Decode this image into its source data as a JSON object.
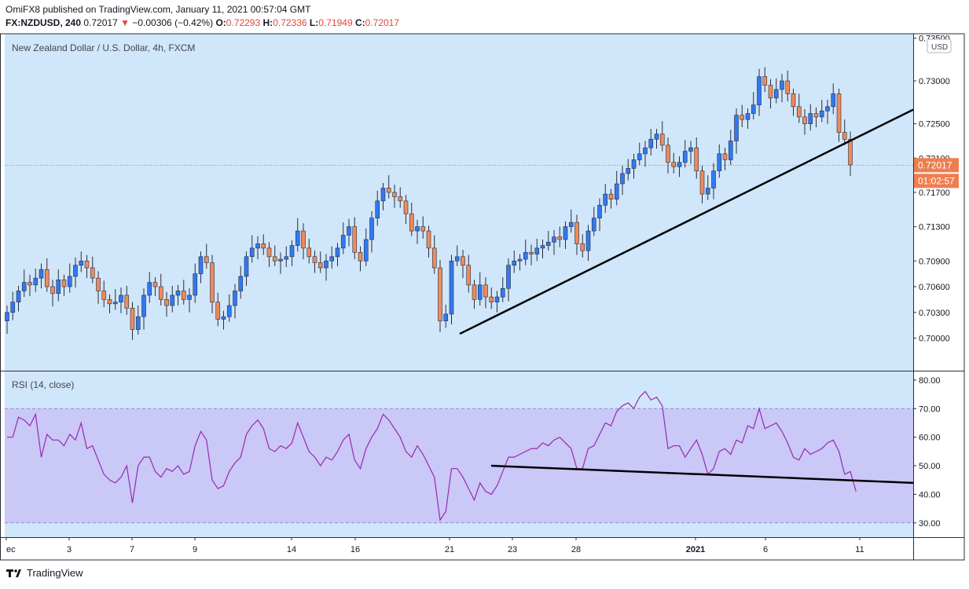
{
  "header": {
    "line1": "OmiFX8 published on TradingView.com, January 11, 2021 00:57:04 GMT",
    "symbol": "FX:NZDUSD, 240",
    "last": "0.72017",
    "change_arrow": "▼",
    "change": "−0.00306 (−0.42%)",
    "o_label": "O:",
    "o": "0.72293",
    "h_label": "H:",
    "h": "0.72336",
    "l_label": "L:",
    "l": "0.71949",
    "c_label": "C:",
    "c": "0.72017"
  },
  "footer": {
    "brand": "TradingView"
  },
  "colors": {
    "up": "#3179f5",
    "down": "#ef8a5b",
    "rsi_line": "#9c27b0",
    "panel_bg": "#d0e6fa",
    "rsi_band": "#c9c8f7",
    "trendline": "#000000"
  },
  "chart_data": [
    {
      "type": "candlestick",
      "title": "New Zealand Dollar / U.S. Dollar, 4h, FXCM",
      "currency_label": "USD",
      "ylim": [
        0.6962,
        0.7355
      ],
      "y_ticks": [
        "0.73500",
        "0.73000",
        "0.72500",
        "0.72100",
        "0.71700",
        "0.71300",
        "0.70900",
        "0.70600",
        "0.70300",
        "0.70000"
      ],
      "last_price_label": "0.72017",
      "countdown_label": "01:02:57",
      "x_tick_labels": [
        "ec",
        "3",
        "7",
        "9",
        "14",
        "16",
        "21",
        "23",
        "28",
        "2021",
        "6",
        "11"
      ],
      "ohlc_closes": [
        0.703,
        0.7042,
        0.7055,
        0.7065,
        0.7062,
        0.707,
        0.708,
        0.706,
        0.7052,
        0.7068,
        0.706,
        0.7072,
        0.7085,
        0.709,
        0.7082,
        0.707,
        0.7055,
        0.7045,
        0.704,
        0.7042,
        0.705,
        0.7035,
        0.701,
        0.7025,
        0.705,
        0.7065,
        0.706,
        0.7045,
        0.7038,
        0.705,
        0.7055,
        0.7045,
        0.705,
        0.7075,
        0.7095,
        0.7088,
        0.7042,
        0.7022,
        0.7025,
        0.7038,
        0.7055,
        0.7072,
        0.7095,
        0.7105,
        0.711,
        0.7105,
        0.7095,
        0.709,
        0.7092,
        0.7095,
        0.7108,
        0.7125,
        0.7105,
        0.7095,
        0.7088,
        0.7082,
        0.709,
        0.7095,
        0.7105,
        0.712,
        0.713,
        0.71,
        0.709,
        0.7115,
        0.714,
        0.716,
        0.7175,
        0.717,
        0.7165,
        0.716,
        0.7145,
        0.7125,
        0.713,
        0.7125,
        0.7105,
        0.7082,
        0.702,
        0.7028,
        0.709,
        0.7095,
        0.7085,
        0.7062,
        0.7045,
        0.7062,
        0.7048,
        0.7042,
        0.7048,
        0.7058,
        0.7085,
        0.709,
        0.7092,
        0.71,
        0.7098,
        0.7105,
        0.7108,
        0.7112,
        0.7118,
        0.7115,
        0.713,
        0.7135,
        0.711,
        0.7102,
        0.7125,
        0.714,
        0.7155,
        0.7168,
        0.7162,
        0.718,
        0.7192,
        0.7198,
        0.7208,
        0.7215,
        0.7222,
        0.7232,
        0.7238,
        0.7225,
        0.7205,
        0.72,
        0.7205,
        0.7218,
        0.7222,
        0.7195,
        0.7168,
        0.7175,
        0.7195,
        0.7215,
        0.7208,
        0.723,
        0.726,
        0.7255,
        0.7262,
        0.7272,
        0.7305,
        0.7295,
        0.728,
        0.729,
        0.73,
        0.7285,
        0.727,
        0.7258,
        0.725,
        0.7262,
        0.7258,
        0.7265,
        0.727,
        0.7285,
        0.724,
        0.7232,
        0.7202
      ],
      "annotations": [
        "Ascending trendline from 0.7005 (Dec 21) to 0.7265 (projected)"
      ]
    },
    {
      "type": "line",
      "title": "RSI (14, close)",
      "ylim": [
        25,
        83
      ],
      "y_ticks": [
        "80.00",
        "70.00",
        "60.00",
        "50.00",
        "40.00",
        "30.00"
      ],
      "band": [
        30,
        70
      ],
      "values": [
        60,
        60,
        67,
        66,
        64,
        68,
        53,
        61,
        59,
        59,
        57,
        61,
        59,
        65,
        56,
        57,
        52,
        47,
        45,
        44,
        46,
        50,
        37,
        50,
        53,
        53,
        48,
        46,
        49,
        48,
        50,
        47,
        48,
        57,
        62,
        59,
        45,
        42,
        43,
        48,
        51,
        53,
        61,
        64,
        66,
        63,
        56,
        55,
        57,
        56,
        58,
        65,
        60,
        55,
        53,
        50,
        53,
        52,
        55,
        59,
        61,
        52,
        49,
        56,
        60,
        63,
        68,
        66,
        63,
        60,
        55,
        53,
        57,
        54,
        50,
        46,
        31,
        34,
        49,
        49,
        46,
        42,
        38,
        44,
        41,
        40,
        43,
        48,
        53,
        53,
        54,
        55,
        56,
        56,
        58,
        57,
        59,
        60,
        58,
        56,
        49,
        49,
        56,
        57,
        61,
        65,
        64,
        69,
        71,
        72,
        70,
        74,
        76,
        73,
        74,
        71,
        56,
        57,
        57,
        53,
        56,
        59,
        54,
        47,
        49,
        55,
        56,
        54,
        59,
        58,
        64,
        63,
        70,
        63,
        64,
        65,
        62,
        58,
        53,
        52,
        56,
        54,
        55,
        56,
        58,
        59,
        55,
        47,
        48,
        41
      ],
      "annotations": [
        "Descending trendline on RSI from 50 to 44"
      ]
    }
  ]
}
